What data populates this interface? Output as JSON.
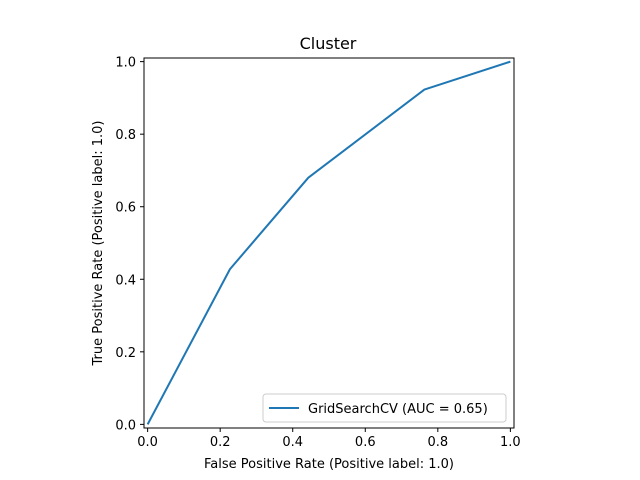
{
  "chart_data": {
    "type": "line",
    "title": "Cluster",
    "xlabel": "False Positive Rate (Positive label: 1.0)",
    "ylabel": "True Positive Rate (Positive label: 1.0)",
    "xlim": [
      -0.01,
      1.01
    ],
    "ylim": [
      -0.01,
      1.01
    ],
    "x_ticks": [
      "0.0",
      "0.2",
      "0.4",
      "0.6",
      "0.8",
      "1.0"
    ],
    "y_ticks": [
      "0.0",
      "0.2",
      "0.4",
      "0.6",
      "0.8",
      "1.0"
    ],
    "grid": false,
    "legend_position": "lower-right",
    "series": [
      {
        "name": "GridSearchCV (AUC = 0.65)",
        "color": "#1f77b4",
        "x": [
          0.0,
          0.227,
          0.443,
          0.763,
          1.0
        ],
        "y": [
          0.0,
          0.428,
          0.68,
          0.923,
          1.0
        ]
      }
    ]
  }
}
